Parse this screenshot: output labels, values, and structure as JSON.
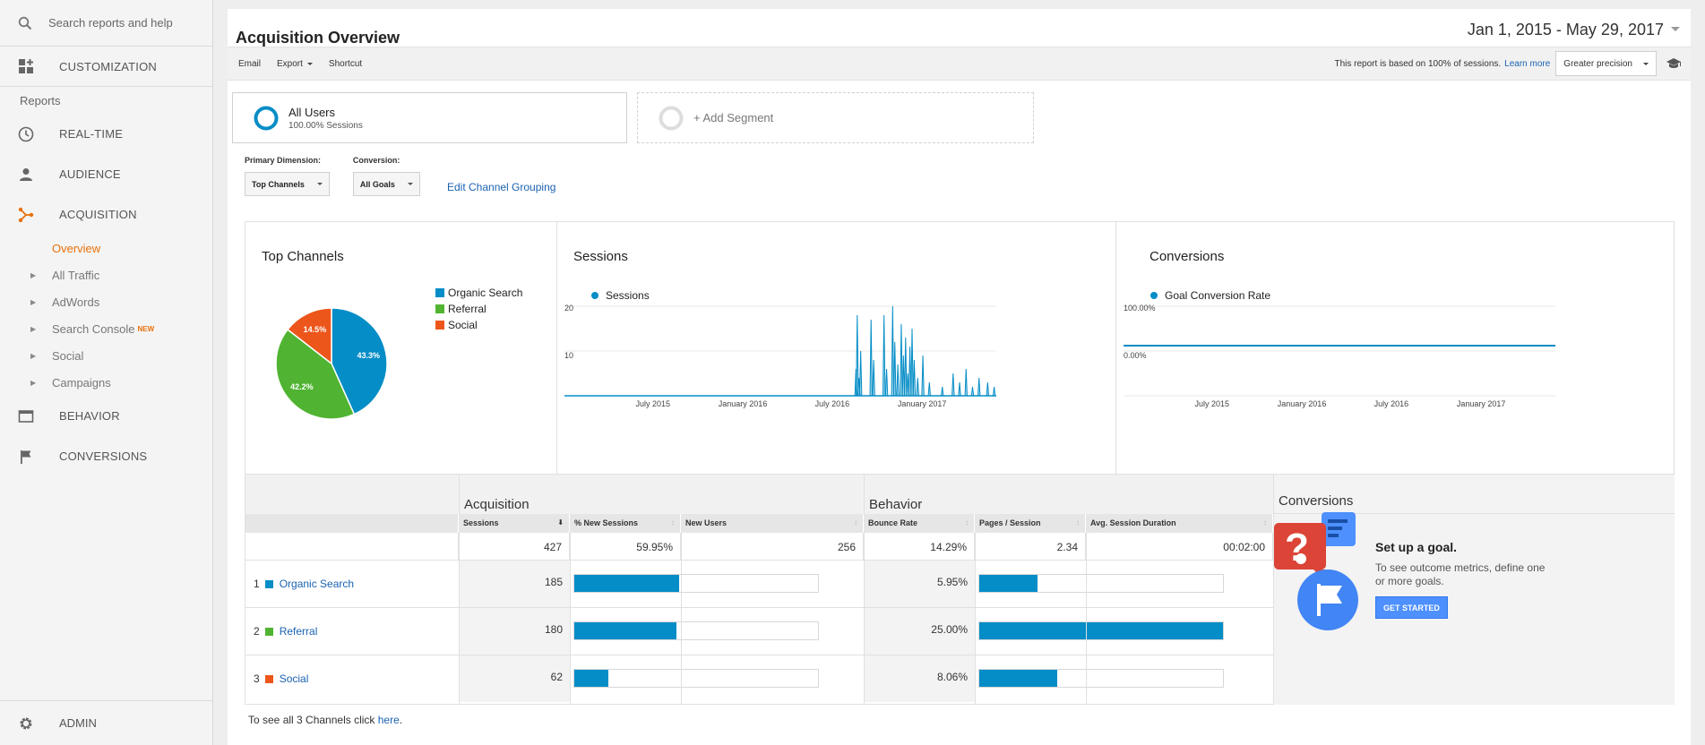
{
  "sidebar": {
    "search_placeholder": "Search reports and help",
    "customization": "CUSTOMIZATION",
    "reports_header": "Reports",
    "realtime": "REAL-TIME",
    "audience": "AUDIENCE",
    "acquisition": "ACQUISITION",
    "sub_items": [
      "Overview",
      "All Traffic",
      "AdWords",
      "Search Console",
      "Social",
      "Campaigns"
    ],
    "new_badge": "NEW",
    "behavior": "BEHAVIOR",
    "conversions": "CONVERSIONS",
    "admin": "ADMIN",
    "accent_color": "#e8710a"
  },
  "header": {
    "title": "Acquisition Overview",
    "date_range": "Jan 1, 2015 - May 29, 2017"
  },
  "toolbar": {
    "email": "Email",
    "export": "Export",
    "shortcut": "Shortcut",
    "basis_text": "This report is based on 100% of sessions.",
    "learn_more": "Learn more",
    "precision": "Greater precision"
  },
  "segments": {
    "all_users": "All Users",
    "all_users_sub": "100.00% Sessions",
    "add_segment": "+ Add Segment"
  },
  "dimensions": {
    "primary_label": "Primary Dimension:",
    "primary_value": "Top Channels",
    "conversion_label": "Conversion:",
    "conversion_value": "All Goals",
    "edit_link": "Edit Channel Grouping"
  },
  "chart_data": [
    {
      "type": "pie",
      "title": "Top Channels",
      "categories": [
        "Organic Search",
        "Referral",
        "Social"
      ],
      "values": [
        43.3,
        42.2,
        14.5
      ],
      "labels": [
        "43.3%",
        "42.2%",
        "14.5%"
      ],
      "colors": [
        "#058dc7",
        "#50b432",
        "#ed561b"
      ]
    },
    {
      "type": "area",
      "title": "Sessions",
      "series": [
        {
          "name": "Sessions"
        }
      ],
      "yticks": [
        "20",
        "10"
      ],
      "xticks": [
        "July 2015",
        "January 2016",
        "July 2016",
        "January 2017"
      ],
      "ylim": [
        0,
        20
      ],
      "spikes": [
        {
          "x": 0.675,
          "y": 6
        },
        {
          "x": 0.678,
          "y": 18
        },
        {
          "x": 0.682,
          "y": 4
        },
        {
          "x": 0.686,
          "y": 10
        },
        {
          "x": 0.71,
          "y": 17
        },
        {
          "x": 0.716,
          "y": 8
        },
        {
          "x": 0.74,
          "y": 18
        },
        {
          "x": 0.746,
          "y": 6
        },
        {
          "x": 0.76,
          "y": 20
        },
        {
          "x": 0.765,
          "y": 12
        },
        {
          "x": 0.772,
          "y": 7
        },
        {
          "x": 0.78,
          "y": 16
        },
        {
          "x": 0.785,
          "y": 9
        },
        {
          "x": 0.79,
          "y": 13
        },
        {
          "x": 0.795,
          "y": 5
        },
        {
          "x": 0.8,
          "y": 11
        },
        {
          "x": 0.805,
          "y": 15
        },
        {
          "x": 0.81,
          "y": 8
        },
        {
          "x": 0.818,
          "y": 4
        },
        {
          "x": 0.83,
          "y": 9
        },
        {
          "x": 0.845,
          "y": 3
        },
        {
          "x": 0.875,
          "y": 2
        },
        {
          "x": 0.9,
          "y": 5
        },
        {
          "x": 0.915,
          "y": 3
        },
        {
          "x": 0.93,
          "y": 6
        },
        {
          "x": 0.945,
          "y": 2
        },
        {
          "x": 0.96,
          "y": 4
        },
        {
          "x": 0.98,
          "y": 3
        },
        {
          "x": 0.995,
          "y": 2
        }
      ],
      "color": "#058dc7"
    },
    {
      "type": "line",
      "title": "Conversions",
      "series": [
        {
          "name": "Goal Conversion Rate",
          "values": [
            0
          ]
        }
      ],
      "yticks": [
        "100.00%",
        "0.00%"
      ],
      "xticks": [
        "July 2015",
        "January 2016",
        "July 2016",
        "January 2017"
      ],
      "color": "#058dc7"
    },
    {
      "type": "table",
      "groups": [
        "Acquisition",
        "Behavior",
        "Conversions"
      ],
      "columns": [
        "Sessions",
        "% New Sessions",
        "New Users",
        "Bounce Rate",
        "Pages / Session",
        "Avg. Session Duration"
      ],
      "totals": [
        "427",
        "59.95%",
        "256",
        "14.29%",
        "2.34",
        "00:02:00"
      ],
      "rows": [
        {
          "rank": "1",
          "channel": "Organic Search",
          "color": "#058dc7",
          "sessions": "185",
          "new_sessions_frac": 0.43,
          "bounce_rate": "5.95%",
          "pages_frac": 0.24
        },
        {
          "rank": "2",
          "channel": "Referral",
          "color": "#50b432",
          "sessions": "180",
          "new_sessions_frac": 0.42,
          "bounce_rate": "25.00%",
          "pages_frac": 1.0
        },
        {
          "rank": "3",
          "channel": "Social",
          "color": "#ed561b",
          "sessions": "62",
          "new_sessions_frac": 0.14,
          "bounce_rate": "8.06%",
          "pages_frac": 0.32
        }
      ]
    }
  ],
  "goal": {
    "title": "Set up a goal.",
    "desc": "To see outcome metrics, define one or more goals.",
    "button": "GET STARTED"
  },
  "footnote": {
    "prefix": "To see all 3 Channels click",
    "link": "here",
    "suffix": "."
  }
}
